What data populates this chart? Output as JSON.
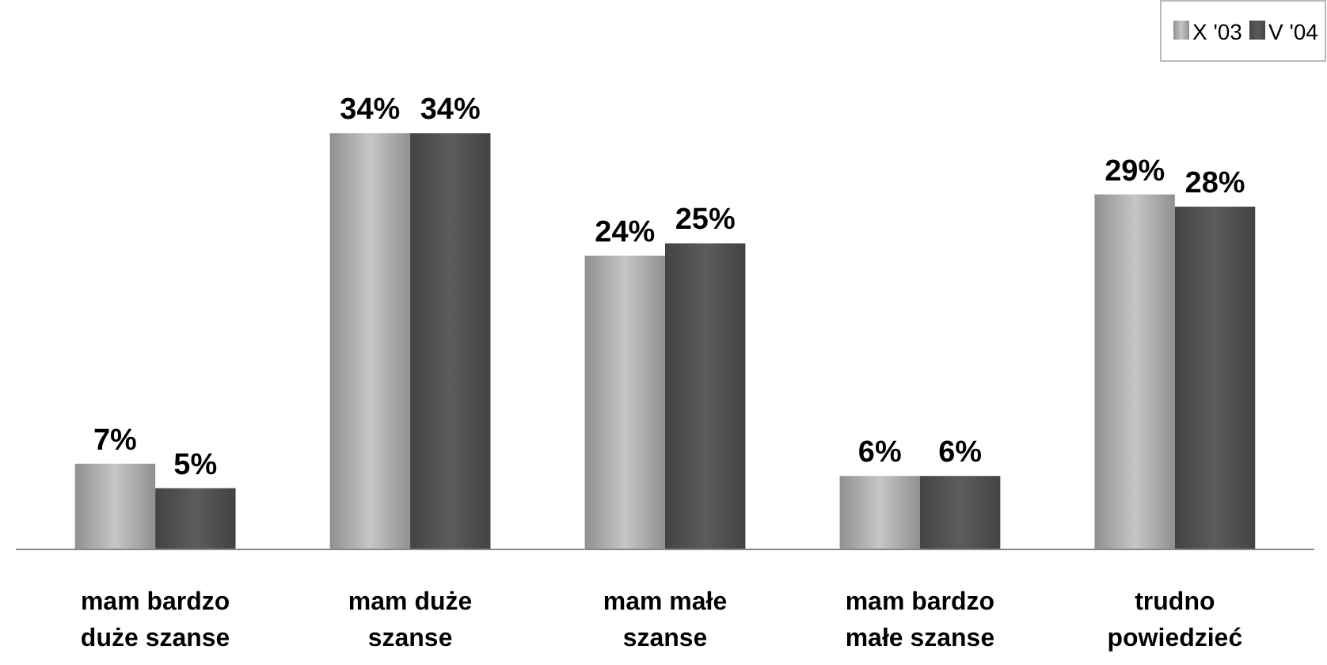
{
  "chart_data": {
    "type": "bar",
    "categories": [
      "mam bardzo duże szanse",
      "mam duże szanse",
      "mam małe szanse",
      "mam bardzo małe szanse",
      "trudno powiedzieć"
    ],
    "series": [
      {
        "name": "X '03",
        "color": "#a6a6a6",
        "values": [
          7,
          34,
          24,
          6,
          29
        ],
        "value_labels": [
          "7%",
          "34%",
          "24%",
          "6%",
          "29%"
        ]
      },
      {
        "name": "V '04",
        "color": "#4d4d4d",
        "values": [
          5,
          34,
          25,
          6,
          28
        ],
        "value_labels": [
          "5%",
          "34%",
          "25%",
          "6%",
          "28%"
        ]
      }
    ],
    "legend": "top right",
    "grid": false
  }
}
